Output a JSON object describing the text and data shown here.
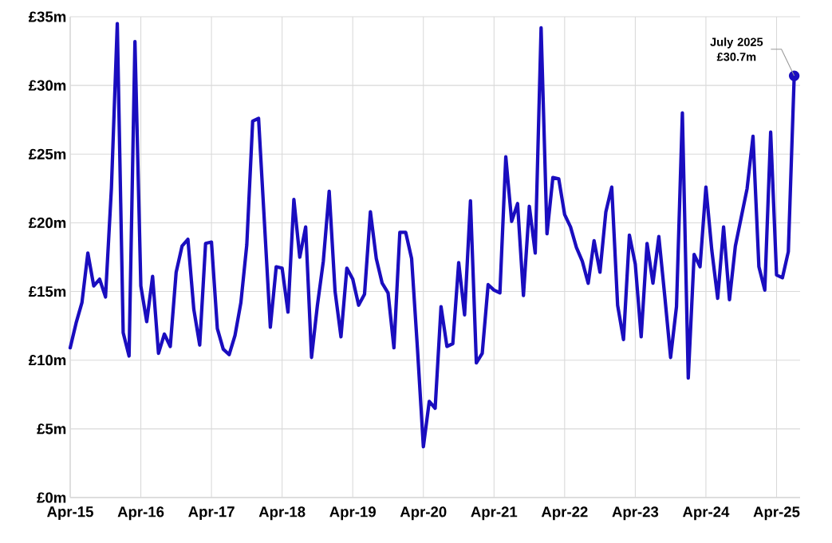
{
  "chart_data": {
    "type": "line",
    "x": [
      "2015-04",
      "2015-05",
      "2015-06",
      "2015-07",
      "2015-08",
      "2015-09",
      "2015-10",
      "2015-11",
      "2015-12",
      "2016-01",
      "2016-02",
      "2016-03",
      "2016-04",
      "2016-05",
      "2016-06",
      "2016-07",
      "2016-08",
      "2016-09",
      "2016-10",
      "2016-11",
      "2016-12",
      "2017-01",
      "2017-02",
      "2017-03",
      "2017-04",
      "2017-05",
      "2017-06",
      "2017-07",
      "2017-08",
      "2017-09",
      "2017-10",
      "2017-11",
      "2017-12",
      "2018-01",
      "2018-02",
      "2018-03",
      "2018-04",
      "2018-05",
      "2018-06",
      "2018-07",
      "2018-08",
      "2018-09",
      "2018-10",
      "2018-11",
      "2018-12",
      "2019-01",
      "2019-02",
      "2019-03",
      "2019-04",
      "2019-05",
      "2019-06",
      "2019-07",
      "2019-08",
      "2019-09",
      "2019-10",
      "2019-11",
      "2019-12",
      "2020-01",
      "2020-02",
      "2020-03",
      "2020-04",
      "2020-05",
      "2020-06",
      "2020-07",
      "2020-08",
      "2020-09",
      "2020-10",
      "2020-11",
      "2020-12",
      "2021-01",
      "2021-02",
      "2021-03",
      "2021-04",
      "2021-05",
      "2021-06",
      "2021-07",
      "2021-08",
      "2021-09",
      "2021-10",
      "2021-11",
      "2021-12",
      "2022-01",
      "2022-02",
      "2022-03",
      "2022-04",
      "2022-05",
      "2022-06",
      "2022-07",
      "2022-08",
      "2022-09",
      "2022-10",
      "2022-11",
      "2022-12",
      "2023-01",
      "2023-02",
      "2023-03",
      "2023-04",
      "2023-05",
      "2023-06",
      "2023-07",
      "2023-08",
      "2023-09",
      "2023-10",
      "2023-11",
      "2023-12",
      "2024-01",
      "2024-02",
      "2024-03",
      "2024-04",
      "2024-05",
      "2024-06",
      "2024-07",
      "2024-08",
      "2024-09",
      "2024-10",
      "2024-11",
      "2024-12",
      "2025-01",
      "2025-02",
      "2025-03",
      "2025-04",
      "2025-05",
      "2025-06",
      "2025-07"
    ],
    "series": [
      {
        "color": "#1a0dbf",
        "values": [
          10.9,
          12.7,
          14.2,
          17.8,
          15.4,
          15.9,
          14.6,
          22.5,
          34.5,
          12.0,
          10.3,
          33.2,
          15.4,
          12.8,
          16.1,
          10.5,
          11.9,
          11.0,
          16.4,
          18.3,
          18.8,
          13.7,
          11.1,
          18.5,
          18.6,
          12.3,
          10.8,
          10.4,
          11.8,
          14.2,
          18.4,
          27.4,
          27.6,
          20.0,
          12.4,
          16.8,
          16.7,
          13.5,
          21.7,
          17.5,
          19.7,
          10.2,
          14.0,
          17.2,
          22.3,
          15.0,
          11.7,
          16.7,
          15.9,
          14.0,
          14.8,
          20.8,
          17.4,
          15.6,
          14.9,
          10.9,
          19.3,
          19.3,
          17.4,
          10.8,
          3.7,
          7.0,
          6.5,
          13.9,
          11.0,
          11.2,
          17.1,
          13.3,
          21.6,
          9.8,
          10.5,
          15.5,
          15.1,
          14.9,
          24.8,
          20.1,
          21.4,
          14.7,
          21.2,
          17.8,
          34.2,
          19.2,
          23.3,
          23.2,
          20.6,
          19.7,
          18.2,
          17.2,
          15.6,
          18.7,
          16.4,
          20.8,
          22.6,
          14.0,
          11.5,
          19.1,
          17.0,
          11.7,
          18.5,
          15.6,
          19.0,
          14.7,
          10.2,
          13.9,
          28.0,
          8.7,
          17.7,
          16.8,
          22.6,
          18.0,
          14.5,
          19.7,
          14.4,
          18.3,
          20.4,
          22.5,
          26.3,
          16.8,
          15.1,
          26.6,
          16.2,
          16.0,
          17.9,
          30.7
        ]
      }
    ],
    "xlim": [
      "2015-04",
      "2025-08"
    ],
    "xticks": [
      {
        "value": "2015-04",
        "label": "Apr-15"
      },
      {
        "value": "2016-04",
        "label": "Apr-16"
      },
      {
        "value": "2017-04",
        "label": "Apr-17"
      },
      {
        "value": "2018-04",
        "label": "Apr-18"
      },
      {
        "value": "2019-04",
        "label": "Apr-19"
      },
      {
        "value": "2020-04",
        "label": "Apr-20"
      },
      {
        "value": "2021-04",
        "label": "Apr-21"
      },
      {
        "value": "2022-04",
        "label": "Apr-22"
      },
      {
        "value": "2023-04",
        "label": "Apr-23"
      },
      {
        "value": "2024-04",
        "label": "Apr-24"
      },
      {
        "value": "2025-04",
        "label": "Apr-25"
      }
    ],
    "ylim": [
      0,
      35
    ],
    "yticks": [
      {
        "value": 0,
        "label": "£0m"
      },
      {
        "value": 5,
        "label": "£5m"
      },
      {
        "value": 10,
        "label": "£10m"
      },
      {
        "value": 15,
        "label": "£15m"
      },
      {
        "value": 20,
        "label": "£20m"
      },
      {
        "value": 25,
        "label": "£25m"
      },
      {
        "value": 30,
        "label": "£30m"
      },
      {
        "value": 35,
        "label": "£35m"
      }
    ],
    "grid": true,
    "marker": "none",
    "line_style": "solid",
    "annotations": [
      {
        "text": "July 2025 £30.7m",
        "x": "2025-07",
        "y": 30.7
      }
    ]
  }
}
